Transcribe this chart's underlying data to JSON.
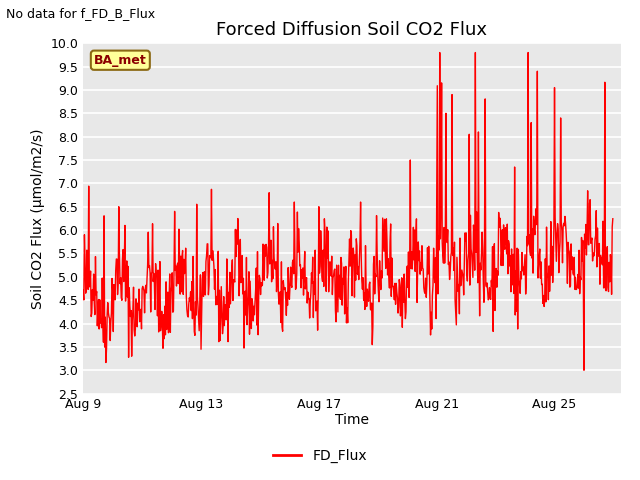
{
  "title": "Forced Diffusion Soil CO2 Flux",
  "xlabel": "Time",
  "ylabel": "Soil CO2 Flux (μmol/m2/s)",
  "top_left_text": "No data for f_FD_B_Flux",
  "legend_label": "FD_Flux",
  "line_color": "red",
  "fig_bg_color": "#ffffff",
  "plot_bg_color": "#e8e8e8",
  "ylim": [
    2.5,
    10.0
  ],
  "yticks": [
    2.5,
    3.0,
    3.5,
    4.0,
    4.5,
    5.0,
    5.5,
    6.0,
    6.5,
    7.0,
    7.5,
    8.0,
    8.5,
    9.0,
    9.5,
    10.0
  ],
  "xtick_days": [
    9,
    13,
    17,
    21,
    25
  ],
  "xtick_labels": [
    "Aug 9",
    "Aug 13",
    "Aug 17",
    "Aug 21",
    "Aug 25"
  ],
  "ba_met_label": "BA_met",
  "ba_met_bg": "#ffff99",
  "ba_met_border": "#8B6914",
  "ba_met_text_color": "#8B0000",
  "title_fontsize": 13,
  "label_fontsize": 10,
  "tick_fontsize": 9,
  "top_left_fontsize": 9,
  "grid_color": "white",
  "linewidth": 1.0
}
